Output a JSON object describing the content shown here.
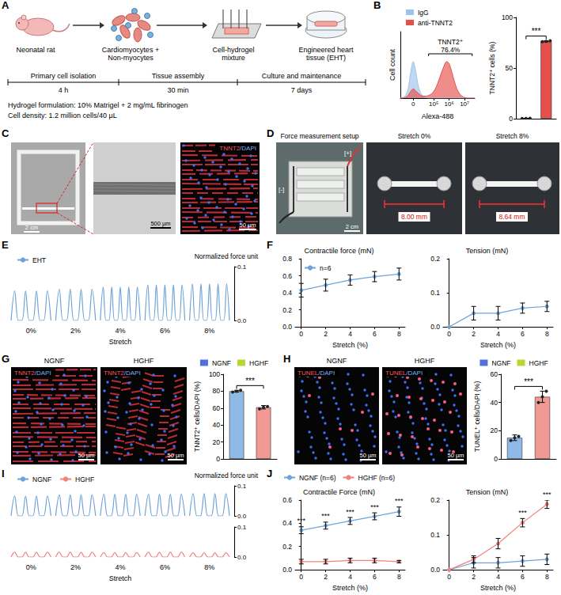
{
  "figure": {
    "letters": [
      "A",
      "B",
      "C",
      "D",
      "E",
      "F",
      "G",
      "H",
      "I",
      "J"
    ],
    "A": {
      "steps": [
        "Neonatal rat",
        "Cardiomyocytes + Non-myocytes",
        "Cell-hydrogel mixture",
        "Engineered heart tissue (EHT)"
      ],
      "timeline": [
        {
          "phase": "Primary cell isolation",
          "duration": "4 h"
        },
        {
          "phase": "Tissue assembly",
          "duration": "30 min"
        },
        {
          "phase": "Culture and maintenance",
          "duration": "7 days"
        }
      ],
      "notes": [
        "Hydrogel formulation: 10% Matrigel + 2 mg/mL fibrinogen",
        "Cell density: 1.2 million cells/40 µL"
      ]
    },
    "C": {
      "images": [
        {
          "scale_bar": "2 cm"
        },
        {
          "scale_bar": "500 µm"
        },
        {
          "stain": "TNNT2/DAPI",
          "scale_bar": "50 µm"
        }
      ]
    },
    "D": {
      "images": [
        {
          "title": "Force measurement setup",
          "electrodes": [
            "[-]",
            "[+]"
          ],
          "scale_bar": "2 cm"
        },
        {
          "title": "Stretch 0%",
          "length": "8.00 mm"
        },
        {
          "title": "Stretch 8%",
          "length": "8.64 mm"
        }
      ]
    },
    "G": {
      "images": [
        {
          "title": "NGNF"
        },
        {
          "title": "HGHF"
        }
      ],
      "stain": "TNNT2/DAPI",
      "scale_bar": "50 µm"
    },
    "H": {
      "images": [
        {
          "title": "NGNF"
        },
        {
          "title": "HGHF"
        }
      ],
      "stain": "TUNEL/DAPI",
      "scale_bar": "50 µm"
    }
  },
  "chart_data": [
    {
      "type": "area",
      "x_title": "Alexa-488",
      "y_title": "Cell count",
      "categories": [
        null,
        null,
        null,
        null,
        null,
        "0",
        null,
        null,
        null,
        null,
        null,
        null,
        null,
        "10⁵",
        null,
        null,
        null,
        null,
        null,
        "10⁶",
        null,
        null,
        null,
        null,
        null,
        "10⁷",
        null,
        null,
        null,
        null
      ],
      "series": [
        {
          "name": "IgG",
          "color": "#9ec3ea",
          "values": [
            0,
            1,
            4,
            14,
            38,
            55,
            40,
            18,
            7,
            3,
            1,
            0,
            0,
            0,
            0,
            0,
            0,
            0,
            0,
            0,
            0,
            0,
            0,
            0,
            0,
            0,
            0,
            0,
            0,
            0
          ]
        },
        {
          "name": "anti-TNNT2",
          "color": "#e5504c",
          "values": [
            0,
            0,
            1,
            4,
            10,
            14,
            11,
            7,
            4,
            3,
            3,
            4,
            6,
            10,
            17,
            27,
            38,
            48,
            55,
            52,
            40,
            26,
            14,
            7,
            3,
            1,
            0,
            0,
            0,
            0
          ]
        }
      ],
      "ylim": [
        0,
        100
      ],
      "tick_labels": "x",
      "legend": "top-left",
      "gate": {
        "label": "TNNT2⁺",
        "text": "76.4%",
        "from": 11,
        "to": 28
      }
    },
    {
      "type": "bar",
      "y_title": "TNNT2⁺ cells (%)",
      "categories": [
        null,
        null
      ],
      "values": [
        0.3,
        76.4
      ],
      "errors": [
        0.1,
        0.5
      ],
      "colors": [
        "#9ec3ea",
        "#e5504c"
      ],
      "points": [
        [
          0.2,
          0.3,
          0.4
        ],
        [
          75.9,
          76.4,
          76.9
        ]
      ],
      "ylim": [
        0,
        100
      ],
      "yticks": [
        0,
        50,
        100
      ],
      "tick_labels": "y",
      "significance": "***"
    },
    {
      "type": "trace",
      "x_title": "Stretch",
      "y_title": "Normalized force unit",
      "groups": [
        "0%",
        "2%",
        "4%",
        "6%",
        "8%"
      ],
      "series": [
        {
          "name": "EHT",
          "color": "#6fa3d8",
          "values": [
            [
              0,
              0.055,
              0,
              0,
              0.055,
              0,
              0,
              0.055,
              0,
              0,
              0.055,
              0
            ],
            [
              0,
              0.058,
              0,
              0,
              0.058,
              0,
              0,
              0.058,
              0,
              0,
              0.058,
              0
            ],
            [
              0,
              0.062,
              0,
              0,
              0.062,
              0,
              0,
              0.062,
              0,
              0,
              0.062,
              0,
              0,
              0.062,
              0
            ],
            [
              0,
              0.066,
              0,
              0,
              0.066,
              0,
              0,
              0.066,
              0,
              0,
              0.066,
              0,
              0,
              0.066,
              0
            ],
            [
              0,
              0.068,
              0,
              0,
              0.068,
              0,
              0,
              0.068,
              0,
              0,
              0.068,
              0,
              0,
              0.068,
              0
            ]
          ]
        }
      ],
      "ylim": [
        0,
        0.1
      ],
      "yticks": [
        {
          "value": 0,
          "label": "0.0"
        },
        {
          "value": 0.1,
          "label": "0.1"
        }
      ],
      "legend": "top-left"
    },
    {
      "type": "line",
      "title": "Contractile force (mN)",
      "x_title": "Stretch (%)",
      "x": [
        0,
        2,
        4,
        6,
        8
      ],
      "series": [
        {
          "name": "n=6",
          "color": "#6fa3d8",
          "values": [
            0.43,
            0.49,
            0.55,
            0.59,
            0.62
          ],
          "errors": [
            0.08,
            0.07,
            0.06,
            0.06,
            0.07
          ]
        }
      ],
      "xlim": [
        -0.5,
        8.5
      ],
      "xticks": [
        0,
        2,
        4,
        6,
        8
      ],
      "ylim": [
        0,
        0.8
      ],
      "yticks": [
        {
          "value": 0,
          "label": "0.0"
        },
        0.2,
        0.4,
        0.6,
        0.8
      ],
      "marker": "circle",
      "legend": "top-left"
    },
    {
      "type": "line",
      "title": "Tension (mN)",
      "x_title": "Stretch (%)",
      "x": [
        0,
        2,
        4,
        6,
        8
      ],
      "series": [
        {
          "color": "#6fa3d8",
          "values": [
            0,
            0.04,
            0.04,
            0.055,
            0.06
          ],
          "errors": [
            0,
            0.02,
            0.02,
            0.015,
            0.015
          ]
        }
      ],
      "xlim": [
        -0.5,
        8.5
      ],
      "xticks": [
        0,
        2,
        4,
        6,
        8
      ],
      "ylim": [
        0,
        0.2
      ],
      "yticks": [
        {
          "value": 0,
          "label": "0.0"
        },
        0.1,
        0.2
      ],
      "marker": "circle"
    },
    {
      "type": "bar",
      "y_title": "TNNT2⁺ cells/DAPI (%)",
      "categories": [
        null,
        null
      ],
      "series": [
        {
          "name": "NGNF",
          "color": "#8fb9e6",
          "values": [
            80,
            null
          ],
          "errors": [
            1,
            null
          ],
          "points": [
            [
              79,
              80,
              81
            ],
            null
          ]
        },
        {
          "name": "HGHF",
          "color": "#f19a95",
          "values": [
            null,
            61
          ],
          "errors": [
            null,
            2
          ],
          "points": [
            null,
            [
              59,
              61,
              62
            ]
          ]
        }
      ],
      "ylim": [
        0,
        100
      ],
      "yticks": [
        0,
        20,
        40,
        60,
        80,
        100
      ],
      "legend": "top",
      "tick_labels": "y",
      "significance": "***"
    },
    {
      "type": "bar",
      "y_title": "TUNEL⁺ cells/DAPI (%)",
      "categories": [
        null,
        null
      ],
      "series": [
        {
          "name": "NGNF",
          "color": "#8fb9e6",
          "values": [
            15,
            null
          ],
          "errors": [
            2,
            null
          ],
          "points": [
            [
              13,
              15,
              16
            ],
            null
          ]
        },
        {
          "name": "HGHF",
          "color": "#f19a95",
          "values": [
            null,
            44
          ],
          "errors": [
            null,
            4
          ],
          "points": [
            null,
            [
              40,
              44,
              48
            ]
          ]
        }
      ],
      "ylim": [
        0,
        60
      ],
      "yticks": [
        0,
        20,
        40,
        60
      ],
      "legend": "top",
      "tick_labels": "y",
      "significance": "***"
    },
    {
      "type": "trace",
      "x_title": "Stretch",
      "y_title": "Normalized force unit",
      "groups": [
        "0%",
        "2%",
        "4%",
        "6%",
        "8%"
      ],
      "series": [
        {
          "name": "NGNF",
          "color": "#6fa3d8",
          "values": [
            [
              0,
              0.066,
              0,
              0,
              0.066,
              0,
              0,
              0.066,
              0,
              0,
              0.066,
              0
            ],
            [
              0,
              0.07,
              0,
              0,
              0.07,
              0,
              0,
              0.07,
              0,
              0,
              0.07,
              0
            ],
            [
              0,
              0.072,
              0,
              0,
              0.072,
              0,
              0,
              0.072,
              0,
              0,
              0.072,
              0
            ],
            [
              0,
              0.072,
              0,
              0,
              0.072,
              0,
              0,
              0.072,
              0,
              0,
              0.072,
              0
            ],
            [
              0,
              0.074,
              0,
              0,
              0.074,
              0,
              0,
              0.074,
              0,
              0,
              0.074,
              0
            ]
          ]
        },
        {
          "name": "HGHF",
          "color": "#f0817b",
          "values": [
            [
              0,
              0.016,
              0,
              0,
              0.016,
              0,
              0,
              0.016,
              0,
              0,
              0.016,
              0
            ],
            [
              0,
              0.016,
              0,
              0,
              0.016,
              0,
              0,
              0.016,
              0,
              0,
              0.016,
              0
            ],
            [
              0,
              0.015,
              0,
              0,
              0.015,
              0,
              0,
              0.015,
              0,
              0,
              0.015,
              0
            ],
            [
              0,
              0.016,
              0,
              0,
              0.016,
              0,
              0,
              0.016,
              0,
              0,
              0.016,
              0
            ],
            [
              0,
              0.014,
              0,
              0,
              0.014,
              0,
              0,
              0.014,
              0,
              0,
              0.014,
              0
            ]
          ]
        }
      ],
      "ylim": [
        0,
        0.1
      ],
      "yticks": [
        {
          "value": 0,
          "label": "0.0"
        },
        {
          "value": 0.1,
          "label": "0.1"
        }
      ],
      "legend": "top-left"
    },
    {
      "type": "line",
      "title": "Contractile Force (mN)",
      "x_title": "Stretch (%)",
      "x": [
        0,
        2,
        4,
        6,
        8
      ],
      "series": [
        {
          "name": "NGNF (n=6)",
          "color": "#6fa3d8",
          "values": [
            0.34,
            0.38,
            0.42,
            0.46,
            0.5
          ],
          "errors": [
            0.03,
            0.03,
            0.03,
            0.03,
            0.04
          ]
        },
        {
          "name": "HGHF (n=6)",
          "color": "#f0817b",
          "values": [
            0.07,
            0.07,
            0.08,
            0.08,
            0.07
          ],
          "errors": [
            0.02,
            0.02,
            0.02,
            0.02,
            0.01
          ]
        }
      ],
      "xlim": [
        -0.5,
        8.5
      ],
      "xticks": [
        0,
        2,
        4,
        6,
        8
      ],
      "ylim": [
        0,
        0.6
      ],
      "yticks": [
        {
          "value": 0,
          "label": "0.0"
        },
        0.2,
        0.4,
        0.6
      ],
      "marker": "circle",
      "legend": "top",
      "significance": {
        "label": "***",
        "x": [
          0,
          2,
          4,
          6,
          8
        ]
      }
    },
    {
      "type": "line",
      "title": "Tension (mN)",
      "x_title": "Stretch (%)",
      "x": [
        0,
        2,
        4,
        6,
        8
      ],
      "series": [
        {
          "color": "#6fa3d8",
          "values": [
            0,
            0.02,
            0.02,
            0.025,
            0.03
          ],
          "errors": [
            0,
            0.015,
            0.015,
            0.015,
            0.015
          ]
        },
        {
          "color": "#f0817b",
          "values": [
            0,
            0.03,
            0.075,
            0.135,
            0.188
          ],
          "errors": [
            0,
            0.01,
            0.015,
            0.012,
            0.012
          ]
        }
      ],
      "xlim": [
        -0.5,
        8.5
      ],
      "xticks": [
        0,
        2,
        4,
        6,
        8
      ],
      "ylim": [
        0,
        0.2
      ],
      "yticks": [
        {
          "value": 0,
          "label": "0.0"
        },
        0.1,
        0.2
      ],
      "marker": "circle",
      "significance": {
        "label": "***",
        "x": [
          6,
          8
        ]
      }
    }
  ]
}
